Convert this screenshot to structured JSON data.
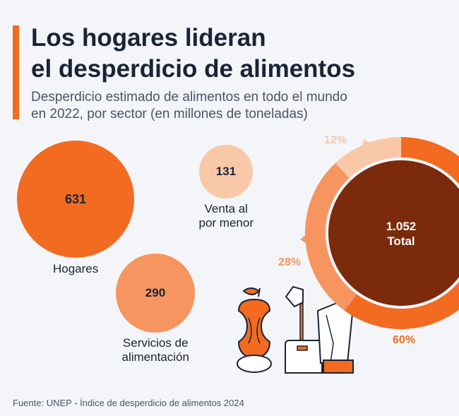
{
  "header": {
    "title_line1": "Los hogares lideran",
    "title_line2": "el desperdicio de alimentos",
    "subtitle_line1": "Desperdicio estimado de alimentos en todo el mundo",
    "subtitle_line2": "en 2022, por sector (en millones de toneladas)"
  },
  "chart_data": [
    {
      "type": "bubble",
      "categories": [
        "Hogares",
        "Venta al por menor",
        "Servicios de alimentación"
      ],
      "values": [
        631,
        131,
        290
      ],
      "value_labels": [
        "631",
        "131",
        "290"
      ],
      "label_lines": [
        [
          "Hogares"
        ],
        [
          "Venta al",
          "por menor"
        ],
        [
          "Servicios de",
          "alimentación"
        ]
      ],
      "colors": [
        "#f26b21",
        "#f9c8a9",
        "#f6955f"
      ]
    },
    {
      "type": "pie",
      "variant": "donut",
      "center_value": "1.052",
      "center_label": "Total",
      "slices": [
        {
          "label": "60%",
          "value": 60,
          "color": "#f26b21"
        },
        {
          "label": "28%",
          "value": 28,
          "color": "#f6955f"
        },
        {
          "label": "12%",
          "value": 12,
          "color": "#f9c8a9"
        }
      ],
      "center_color": "#7b2a0c"
    }
  ],
  "footer": {
    "source": "Fuente: UNEP - Índice de desperdicio de alimentos 2024"
  }
}
